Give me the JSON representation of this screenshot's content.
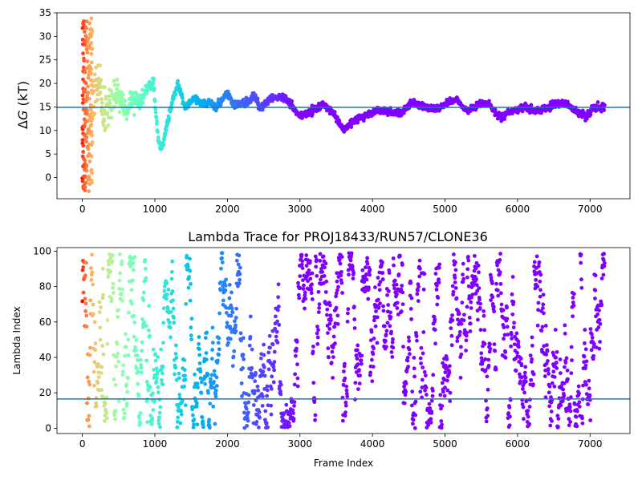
{
  "chart_data": [
    {
      "type": "scatter",
      "title": "",
      "xlabel": "",
      "ylabel": "ΔG (kT)",
      "ylabel_prefix": "Δ",
      "ylabel_var": "G",
      "ylabel_unit": " (kT)",
      "xlim": [
        -350,
        7550
      ],
      "ylim": [
        -4.5,
        35
      ],
      "xticks": [
        0,
        1000,
        2000,
        3000,
        4000,
        5000,
        6000,
        7000
      ],
      "yticks": [
        0,
        5,
        10,
        15,
        20,
        25,
        30,
        35
      ],
      "hline": 14.9,
      "hline_color": "#1f77b4",
      "colormap": "rainbow (early frames red, late frames violet)",
      "n_frames": 7200,
      "trace_anchors": [
        [
          120,
          14
        ],
        [
          200,
          22
        ],
        [
          300,
          13
        ],
        [
          400,
          17
        ],
        [
          500,
          18
        ],
        [
          600,
          14
        ],
        [
          700,
          17
        ],
        [
          800,
          16
        ],
        [
          900,
          19
        ],
        [
          980,
          20
        ],
        [
          1040,
          9
        ],
        [
          1080,
          6
        ],
        [
          1150,
          10
        ],
        [
          1250,
          17
        ],
        [
          1320,
          19.5
        ],
        [
          1420,
          15
        ],
        [
          1550,
          17
        ],
        [
          1650,
          15.5
        ],
        [
          1760,
          16
        ],
        [
          1850,
          15
        ],
        [
          2000,
          18
        ],
        [
          2080,
          15.5
        ],
        [
          2300,
          16
        ],
        [
          2380,
          17.5
        ],
        [
          2450,
          14.5
        ],
        [
          2600,
          17
        ],
        [
          2800,
          17.2
        ],
        [
          2900,
          15
        ],
        [
          3000,
          13
        ],
        [
          3150,
          14
        ],
        [
          3300,
          15.5
        ],
        [
          3450,
          14
        ],
        [
          3600,
          10
        ],
        [
          3700,
          11.5
        ],
        [
          3800,
          12.5
        ],
        [
          3950,
          13.5
        ],
        [
          4100,
          14.5
        ],
        [
          4250,
          13.8
        ],
        [
          4400,
          14
        ],
        [
          4550,
          16
        ],
        [
          4700,
          15
        ],
        [
          4900,
          14.5
        ],
        [
          5000,
          15.5
        ],
        [
          5150,
          16.8
        ],
        [
          5300,
          14
        ],
        [
          5450,
          15.5
        ],
        [
          5600,
          15.8
        ],
        [
          5750,
          12.8
        ],
        [
          5900,
          14
        ],
        [
          6100,
          15
        ],
        [
          6250,
          14
        ],
        [
          6500,
          15.5
        ],
        [
          6650,
          15.8
        ],
        [
          6800,
          14.2
        ],
        [
          6950,
          13
        ],
        [
          7050,
          14.8
        ],
        [
          7200,
          14.9
        ]
      ],
      "initial_scatter_range": [
        -3,
        34
      ]
    },
    {
      "type": "scatter",
      "title": "Lambda Trace for PROJ18433/RUN57/CLONE36",
      "xlabel": "Frame Index",
      "ylabel": "Lambda Index",
      "xlim": [
        -350,
        7550
      ],
      "ylim": [
        -3,
        102
      ],
      "xticks": [
        0,
        1000,
        2000,
        3000,
        4000,
        5000,
        6000,
        7000
      ],
      "yticks": [
        0,
        20,
        40,
        60,
        80,
        100
      ],
      "hline": 16.5,
      "hline_color": "#1f77b4",
      "colormap": "rainbow (early frames red, late frames violet)",
      "n_frames": 7200,
      "lambda_range": [
        0,
        99
      ]
    }
  ]
}
